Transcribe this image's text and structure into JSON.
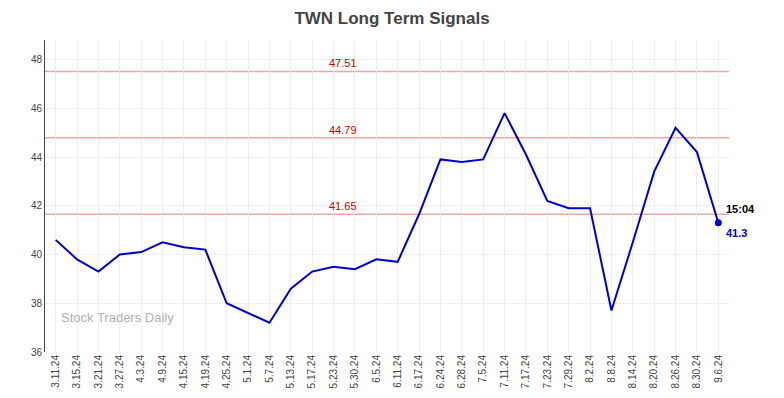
{
  "chart_data": {
    "type": "line",
    "title": "TWN Long Term Signals",
    "categories": [
      "3.11.24",
      "3.15.24",
      "3.21.24",
      "3.27.24",
      "4.3.24",
      "4.9.24",
      "4.15.24",
      "4.19.24",
      "4.25.24",
      "5.1.24",
      "5.7.24",
      "5.13.24",
      "5.17.24",
      "5.23.24",
      "5.30.24",
      "6.5.24",
      "6.11.24",
      "6.17.24",
      "6.24.24",
      "6.28.24",
      "7.5.24",
      "7.11.24",
      "7.17.24",
      "7.23.24",
      "7.29.24",
      "8.2.24",
      "8.8.24",
      "8.14.24",
      "8.20.24",
      "8.26.24",
      "8.30.24",
      "9.6.24"
    ],
    "values": [
      40.6,
      39.8,
      39.3,
      40.0,
      40.1,
      40.5,
      40.3,
      40.2,
      38.0,
      37.6,
      37.2,
      38.6,
      39.3,
      39.5,
      39.4,
      39.8,
      39.7,
      41.65,
      43.9,
      43.8,
      43.9,
      45.8,
      44.1,
      42.2,
      41.9,
      41.9,
      37.7,
      40.5,
      43.4,
      45.2,
      44.2,
      41.3
    ],
    "color": "#0000cc",
    "ylim": [
      36,
      48.8
    ],
    "yticks": [
      36,
      38,
      40,
      42,
      44,
      46,
      48
    ],
    "grid": true,
    "hlines": {
      "values": [
        47.51,
        44.79,
        41.65
      ],
      "color": "#cc0000"
    },
    "annotations": [
      {
        "text": "15:04",
        "x": "9.6.24",
        "y": 41.3,
        "color": "#000000"
      },
      {
        "text": "41.3",
        "x": "9.6.24",
        "y": 41.3,
        "color": "#0000cc"
      },
      {
        "text": "Stock Traders Daily",
        "color": "#b0b0b0"
      }
    ]
  }
}
